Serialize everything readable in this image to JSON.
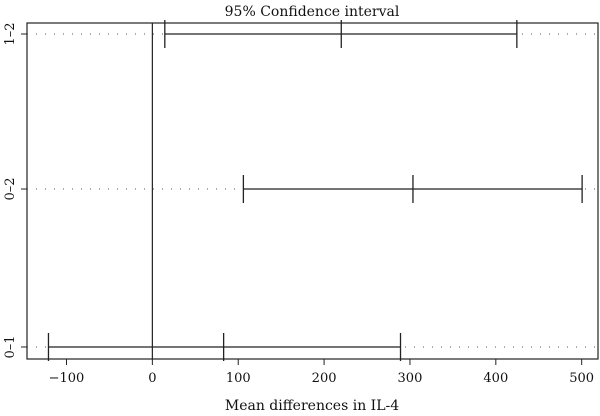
{
  "chart_data": {
    "type": "errorbar",
    "title": "95% Confidence interval",
    "xlabel": "Mean differences in IL-4",
    "ylabel": "",
    "xlim": [
      -146,
      519
    ],
    "xticks": [
      -100,
      0,
      100,
      200,
      300,
      400,
      500
    ],
    "xtick_labels": [
      "−100",
      "0",
      "100",
      "200",
      "300",
      "400",
      "500"
    ],
    "reference_line": 0,
    "comparisons": [
      {
        "label": "1–2",
        "lower": 14.5,
        "estimate": 220,
        "upper": 424.5
      },
      {
        "label": "0–2",
        "lower": 106,
        "estimate": 303.5,
        "upper": 500.5
      },
      {
        "label": "0–1",
        "lower": -121,
        "estimate": 83,
        "upper": 289
      }
    ],
    "grid": false,
    "colors": {
      "line": "#222222",
      "dots": "#555555"
    }
  }
}
